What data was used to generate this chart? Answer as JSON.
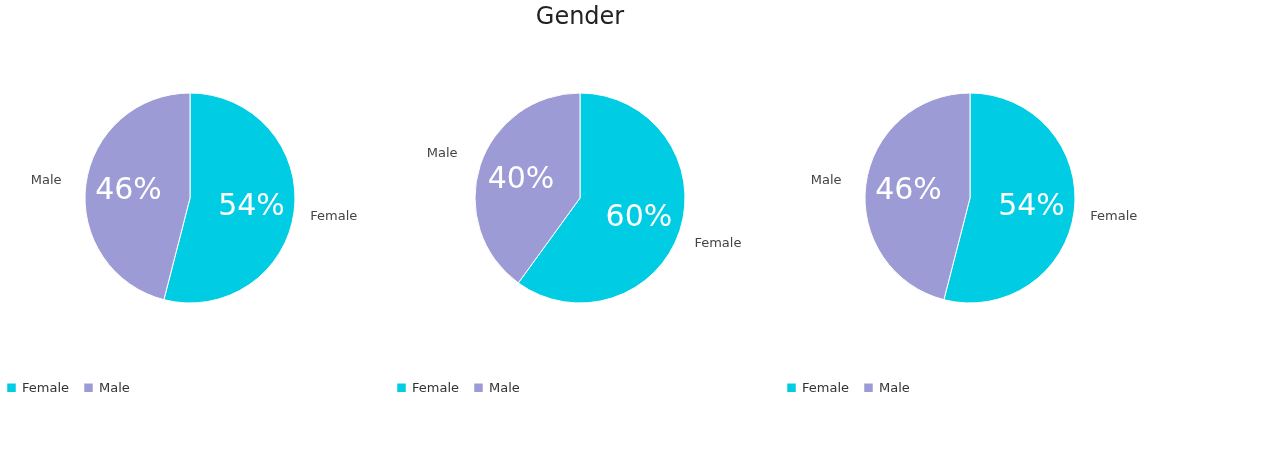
{
  "chart_data": [
    {
      "type": "pie",
      "categories": [
        "Female",
        "Male"
      ],
      "values": [
        54,
        46
      ],
      "colors": [
        "#00cde3",
        "#9d9bd5"
      ],
      "value_labels": [
        "54%",
        "46%"
      ],
      "legend": "bottom"
    },
    {
      "type": "pie",
      "title": "Gender",
      "categories": [
        "Female",
        "Male"
      ],
      "values": [
        60,
        40
      ],
      "colors": [
        "#00cde3",
        "#9d9bd5"
      ],
      "value_labels": [
        "60%",
        "40%"
      ],
      "legend": "bottom"
    },
    {
      "type": "pie",
      "categories": [
        "Female",
        "Male"
      ],
      "values": [
        54,
        46
      ],
      "colors": [
        "#00cde3",
        "#9d9bd5"
      ],
      "value_labels": [
        "54%",
        "46%"
      ],
      "legend": "bottom"
    }
  ]
}
